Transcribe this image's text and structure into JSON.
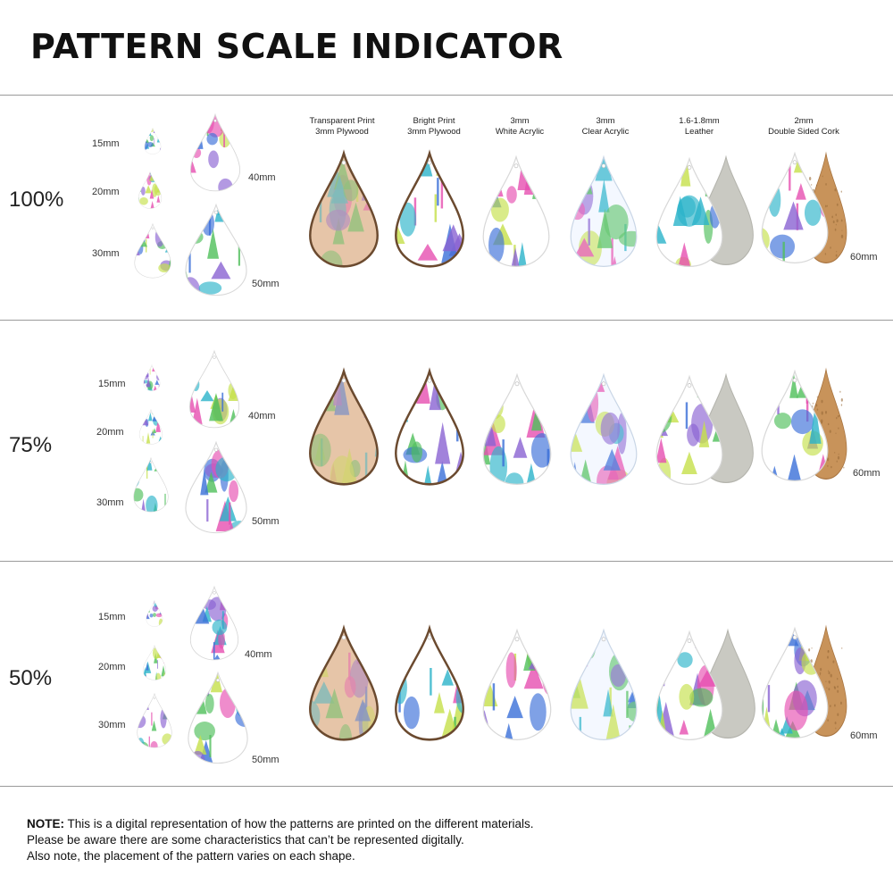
{
  "title": "PATTERN SCALE INDICATOR",
  "columns": [
    {
      "line1": "Transparent Print",
      "line2": "3mm Plywood"
    },
    {
      "line1": "Bright Print",
      "line2": "3mm Plywood"
    },
    {
      "line1": "3mm",
      "line2": "White Acrylic"
    },
    {
      "line1": "3mm",
      "line2": "Clear Acrylic"
    },
    {
      "line1": "1.6-1.8mm",
      "line2": "Leather"
    },
    {
      "line1": "2mm",
      "line2": "Double Sided Cork"
    }
  ],
  "rows": [
    {
      "scale": "100%",
      "sizes": {
        "s15": "15mm",
        "s20": "20mm",
        "s30": "30mm",
        "s40": "40mm",
        "s50": "50mm",
        "s60": "60mm"
      }
    },
    {
      "scale": "75%",
      "sizes": {
        "s15": "15mm",
        "s20": "20mm",
        "s30": "30mm",
        "s40": "40mm",
        "s50": "50mm",
        "s60": "60mm"
      }
    },
    {
      "scale": "50%",
      "sizes": {
        "s15": "15mm",
        "s20": "20mm",
        "s30": "30mm",
        "s40": "40mm",
        "s50": "50mm",
        "s60": "60mm"
      }
    }
  ],
  "note": {
    "label": "NOTE:",
    "line1": " This is a digital representation of how the patterns are printed on the different materials.",
    "line2": "Please be aware there are some characteristics that can’t be represented digitally.",
    "line3": "Also note, the placement of the pattern varies on each shape."
  },
  "colors": {
    "plywood_transparent": "#e6c5a8",
    "plywood_edge": "#6b4a2f",
    "leather_back": "#c9c9c2",
    "cork_back": "#c8935a",
    "pattern_pink": "#e64fb0",
    "pattern_teal": "#2bb3c9",
    "pattern_green": "#4fbf5a",
    "pattern_lime": "#c5e04a",
    "pattern_purple": "#8a63d2",
    "pattern_blue": "#3a6fd8"
  }
}
